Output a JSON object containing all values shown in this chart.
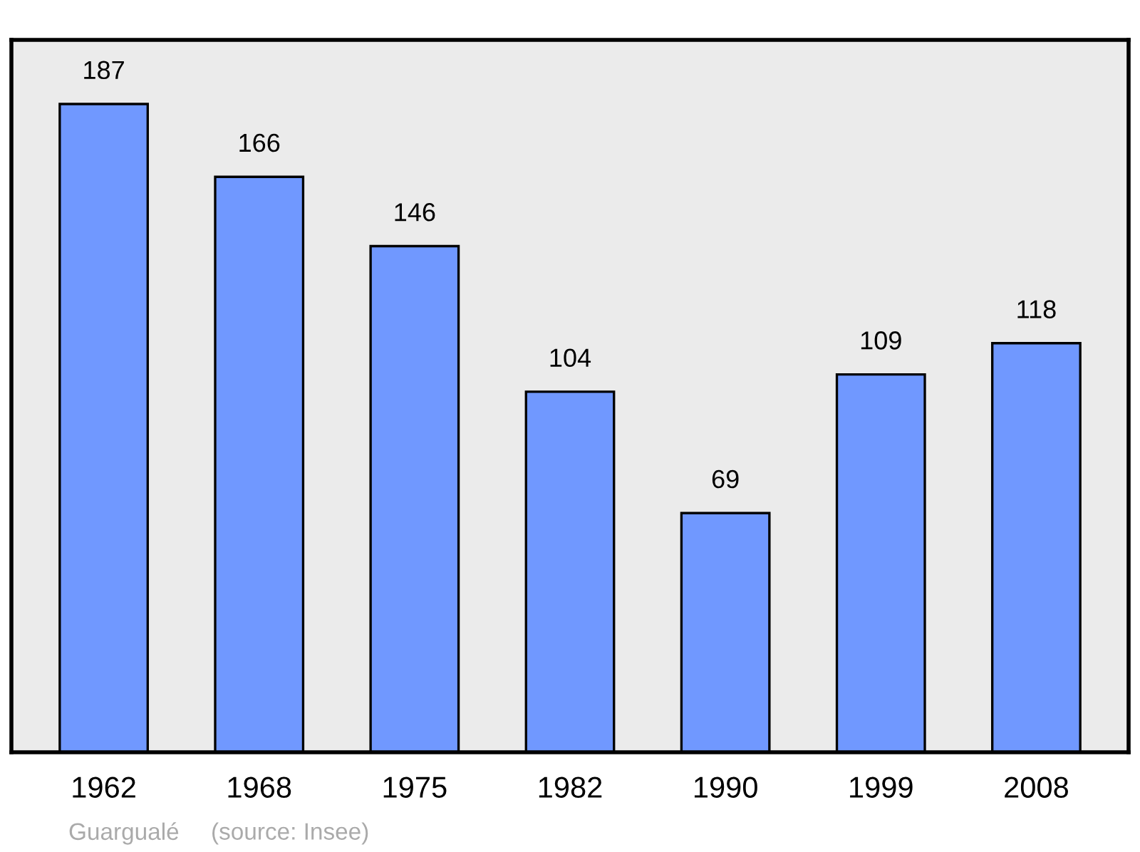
{
  "chart_data": {
    "type": "bar",
    "categories": [
      "1962",
      "1968",
      "1975",
      "1982",
      "1990",
      "1999",
      "2008"
    ],
    "values": [
      187,
      166,
      146,
      104,
      69,
      109,
      118
    ],
    "color": "#7098ff",
    "ylim": [
      0,
      205.5
    ],
    "data_labels": true,
    "tick_labels": "x",
    "grid": false,
    "legend": false,
    "annotations": [
      "Guargualé",
      "(source: Insee)"
    ]
  }
}
